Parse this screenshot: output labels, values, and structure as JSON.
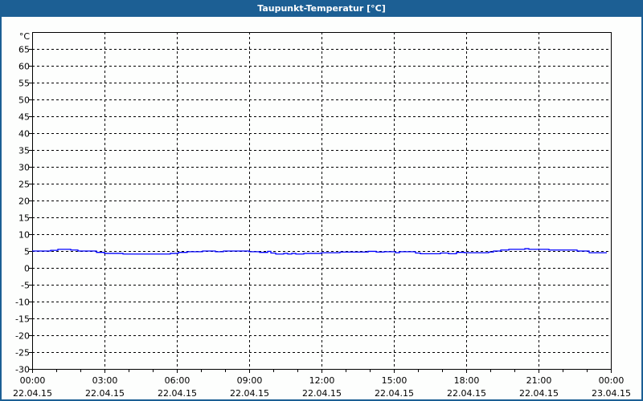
{
  "title": "Taupunkt-Temperatur [°C]",
  "chart_data": {
    "type": "line",
    "title": "Taupunkt-Temperatur [°C]",
    "ylabel": "°C",
    "ylim": [
      -30,
      70
    ],
    "yticks": [
      65,
      60,
      55,
      50,
      45,
      40,
      35,
      30,
      25,
      20,
      15,
      10,
      5,
      0,
      -5,
      -10,
      -15,
      -20,
      -25,
      -30
    ],
    "xticks": [
      {
        "time": "00:00",
        "date": "22.04.15"
      },
      {
        "time": "03:00",
        "date": "22.04.15"
      },
      {
        "time": "06:00",
        "date": "22.04.15"
      },
      {
        "time": "09:00",
        "date": "22.04.15"
      },
      {
        "time": "12:00",
        "date": "22.04.15"
      },
      {
        "time": "15:00",
        "date": "22.04.15"
      },
      {
        "time": "18:00",
        "date": "22.04.15"
      },
      {
        "time": "21:00",
        "date": "22.04.15"
      },
      {
        "time": "00:00",
        "date": "23.04.15"
      }
    ],
    "grid": true,
    "line_color": "#0000ff",
    "series": [
      {
        "points": [
          [
            "00:00",
            5.0
          ],
          [
            "00:46",
            5.2
          ],
          [
            "01:04",
            5.5
          ],
          [
            "01:36",
            5.3
          ],
          [
            "01:54",
            5.0
          ],
          [
            "02:40",
            4.6
          ],
          [
            "03:00",
            4.3
          ],
          [
            "03:46",
            4.1
          ],
          [
            "05:44",
            4.3
          ],
          [
            "06:04",
            4.6
          ],
          [
            "06:26",
            4.8
          ],
          [
            "07:04",
            5.0
          ],
          [
            "07:36",
            4.8
          ],
          [
            "07:56",
            5.0
          ],
          [
            "09:00",
            4.8
          ],
          [
            "09:26",
            4.6
          ],
          [
            "09:46",
            4.9
          ],
          [
            "09:54",
            4.4
          ],
          [
            "10:06",
            4.1
          ],
          [
            "10:26",
            4.3
          ],
          [
            "10:36",
            4.1
          ],
          [
            "10:46",
            4.3
          ],
          [
            "10:56",
            4.1
          ],
          [
            "11:16",
            4.3
          ],
          [
            "12:00",
            4.5
          ],
          [
            "12:46",
            4.7
          ],
          [
            "13:56",
            4.9
          ],
          [
            "14:16",
            4.7
          ],
          [
            "14:36",
            4.8
          ],
          [
            "15:04",
            4.5
          ],
          [
            "15:14",
            4.8
          ],
          [
            "15:54",
            4.4
          ],
          [
            "16:06",
            4.2
          ],
          [
            "16:56",
            4.4
          ],
          [
            "17:16",
            4.2
          ],
          [
            "17:36",
            4.6
          ],
          [
            "17:56",
            4.5
          ],
          [
            "18:56",
            4.7
          ],
          [
            "19:08",
            5.0
          ],
          [
            "19:26",
            5.3
          ],
          [
            "19:46",
            5.5
          ],
          [
            "20:26",
            5.7
          ],
          [
            "20:36",
            5.5
          ],
          [
            "21:26",
            5.3
          ],
          [
            "22:36",
            5.0
          ],
          [
            "23:06",
            4.5
          ],
          [
            "23:50",
            4.5
          ]
        ]
      }
    ]
  }
}
